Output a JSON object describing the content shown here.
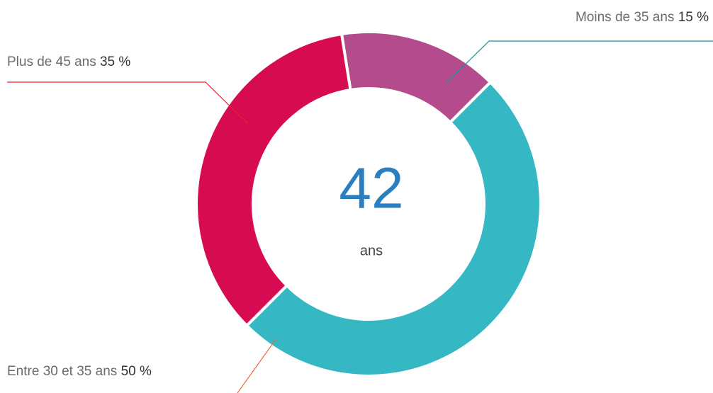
{
  "chart_data": {
    "type": "donut",
    "categories": [
      "Moins de 35 ans",
      "Entre 30 et 35 ans",
      "Plus de 45 ans"
    ],
    "values": [
      15,
      50,
      35
    ],
    "value_labels": [
      "15 %",
      "50 %",
      "35 %"
    ],
    "colors": [
      "#b44b8c",
      "#36b8c4",
      "#d60b52"
    ],
    "center_value": 42,
    "center_label": "ans"
  }
}
